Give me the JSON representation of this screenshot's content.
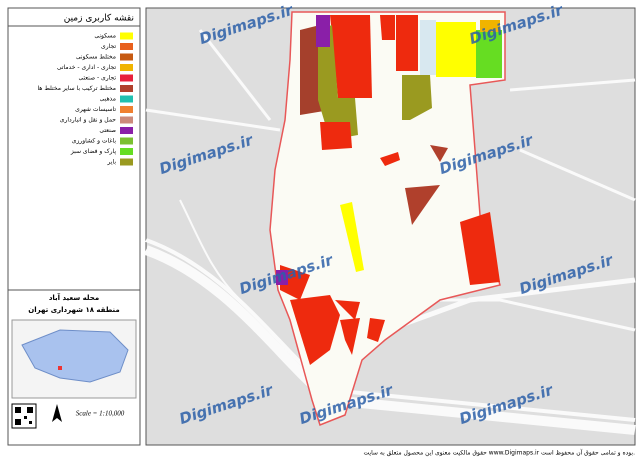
{
  "legend": {
    "title": "نقشه کاربری زمین",
    "items": [
      {
        "label": "مسکونی",
        "color": "#ffff00"
      },
      {
        "label": "تجاری",
        "color": "#e8601c"
      },
      {
        "label": "مختلط مسکونی",
        "color": "#c65a12"
      },
      {
        "label": "تجاری - اداری - خدماتی",
        "color": "#f0b400"
      },
      {
        "label": "تجاری - صنعتی",
        "color": "#e8203c"
      },
      {
        "label": "مختلط ترکیب با سایر مختلط ها",
        "color": "#b0402c"
      },
      {
        "label": "مذهبی",
        "color": "#20c0b0"
      },
      {
        "label": "تاسیسات شهری",
        "color": "#f08030"
      },
      {
        "label": "حمل و نقل و انبارداری",
        "color": "#cc8a7a"
      },
      {
        "label": "صنعتی",
        "color": "#8a1fa8"
      },
      {
        "label": "باغات و کشاورزی",
        "color": "#7ac030"
      },
      {
        "label": "پارک و فضای سبز",
        "color": "#66dd22"
      },
      {
        "label": "بایر",
        "color": "#9a9a20"
      }
    ]
  },
  "locator": {
    "neighborhood": "محله سعید آباد",
    "district": "منطقه ۱۸ شهرداری تهران"
  },
  "scale": "Scale = 1:10,000",
  "watermark": "Digimaps.ir",
  "footer": "حقوق مالکیت معنوی این محصول متعلق به سایت www.Digimaps.ir بوده و تمامی حقوق آن محفوظ است."
}
